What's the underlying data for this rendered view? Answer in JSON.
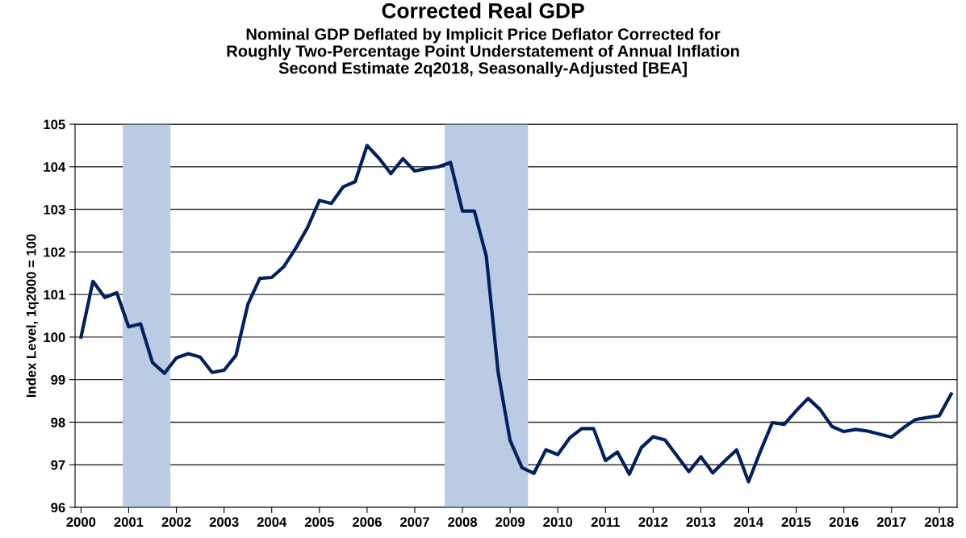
{
  "chart_data": {
    "type": "line",
    "title": "Corrected Real GDP",
    "subtitle": "Nominal GDP Deflated by Implicit Price Deflator Corrected for\nRoughly Two-Percentage Point Understatement of Annual Inflation\nSecond Estimate 2q2018, Seasonally-Adjusted [BEA]",
    "ylabel": "Index Level, 1q2000 = 100",
    "x": [
      2000,
      2000.25,
      2000.5,
      2000.75,
      2001,
      2001.25,
      2001.5,
      2001.75,
      2002,
      2002.25,
      2002.5,
      2002.75,
      2003,
      2003.25,
      2003.5,
      2003.75,
      2004,
      2004.25,
      2004.5,
      2004.75,
      2005,
      2005.25,
      2005.5,
      2005.75,
      2006,
      2006.25,
      2006.5,
      2006.75,
      2007,
      2007.25,
      2007.5,
      2007.75,
      2008,
      2008.25,
      2008.5,
      2008.75,
      2009,
      2009.25,
      2009.5,
      2009.75,
      2010,
      2010.25,
      2010.5,
      2010.75,
      2011,
      2011.25,
      2011.5,
      2011.75,
      2012,
      2012.25,
      2012.5,
      2012.75,
      2013,
      2013.25,
      2013.5,
      2013.75,
      2014,
      2014.25,
      2014.5,
      2014.75,
      2015,
      2015.25,
      2015.5,
      2015.75,
      2016,
      2016.25,
      2016.5,
      2016.75,
      2017,
      2017.25,
      2017.5,
      2017.75,
      2018,
      2018.25
    ],
    "series": [
      {
        "color": "#002060",
        "values": [
          100.0,
          101.31,
          100.93,
          101.04,
          100.24,
          100.31,
          99.4,
          99.15,
          99.51,
          99.61,
          99.53,
          99.17,
          99.22,
          99.57,
          100.77,
          101.38,
          101.4,
          101.65,
          102.08,
          102.57,
          103.21,
          103.14,
          103.53,
          103.65,
          104.5,
          104.2,
          103.84,
          104.19,
          103.9,
          103.96,
          104.0,
          104.1,
          102.96,
          102.96,
          101.9,
          99.16,
          97.57,
          96.93,
          96.8,
          97.35,
          97.24,
          97.63,
          97.85,
          97.85,
          97.1,
          97.3,
          96.78,
          97.4,
          97.66,
          97.58,
          97.21,
          96.84,
          97.19,
          96.81,
          97.09,
          97.35,
          96.6,
          97.32,
          97.99,
          97.95,
          98.27,
          98.56,
          98.3,
          97.9,
          97.78,
          97.83,
          97.79,
          97.72,
          97.65,
          97.87,
          98.06,
          98.11,
          98.15,
          98.66
        ]
      }
    ],
    "xlim": [
      1999.875,
      2018.375
    ],
    "xticks": [
      2000,
      2001,
      2002,
      2003,
      2004,
      2005,
      2006,
      2007,
      2008,
      2009,
      2010,
      2011,
      2012,
      2013,
      2014,
      2015,
      2016,
      2017,
      2018
    ],
    "ylim": [
      96,
      105
    ],
    "yticks": [
      96,
      97,
      98,
      99,
      100,
      101,
      102,
      103,
      104,
      105
    ],
    "bands": [
      {
        "axis": "x",
        "from": 2000.875,
        "to": 2001.875,
        "color": "#b9cce4"
      },
      {
        "axis": "x",
        "from": 2007.625,
        "to": 2009.375,
        "color": "#b9cce4"
      }
    ],
    "grid": "y",
    "line_style": "solid",
    "marker": "none"
  }
}
